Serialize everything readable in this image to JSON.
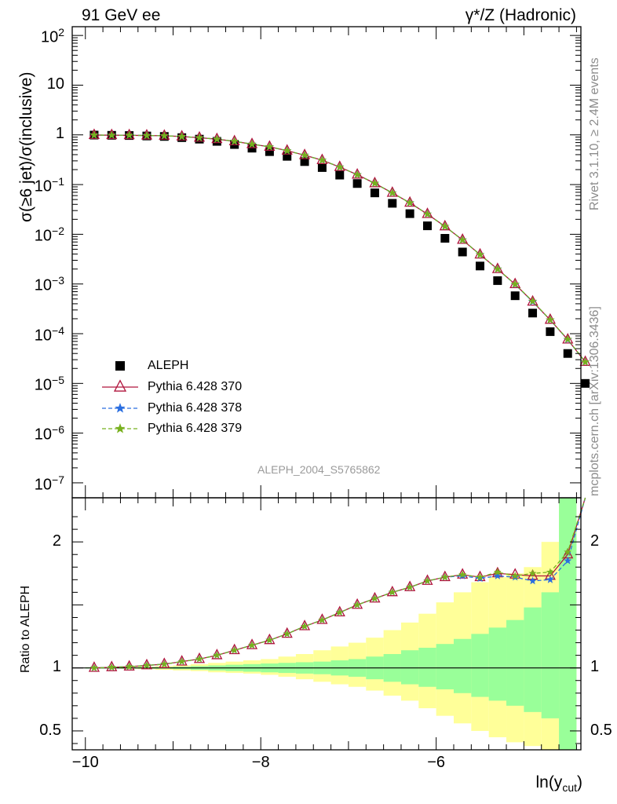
{
  "header": {
    "left_title": "91 GeV ee",
    "right_title": "γ*/Z (Hadronic)"
  },
  "side_notes": {
    "rivet": "Rivet 3.1.10, ≥ 2.4M events",
    "mcplots": "mcplots.cern.ch [arXiv:1306.3436]"
  },
  "plot_id": "ALEPH_2004_S5765862",
  "colors": {
    "aleph": "#000000",
    "py370": "#b0143c",
    "py378": "#2a6ee0",
    "py379": "#78b01e",
    "band_green": "#99ff99",
    "band_yellow": "#ffff99"
  },
  "chart_data": [
    {
      "type": "scatter",
      "panel": "main",
      "ylabel_parts": [
        "σ(≥6 jet)/σ(inclusive)"
      ],
      "xlim": [
        -10.15,
        -4.35
      ],
      "ylim": [
        5e-08,
        150
      ],
      "yscale": "log",
      "ytick_labels": [
        "10^2",
        "10",
        "1",
        "10^-1",
        "10^-2",
        "10^-3",
        "10^-4",
        "10^-5",
        "10^-6",
        "10^-7"
      ],
      "legend_position": "left",
      "x": [
        -9.9,
        -9.7,
        -9.5,
        -9.3,
        -9.1,
        -8.9,
        -8.7,
        -8.5,
        -8.3,
        -8.1,
        -7.9,
        -7.7,
        -7.5,
        -7.3,
        -7.1,
        -6.9,
        -6.7,
        -6.5,
        -6.3,
        -6.1,
        -5.9,
        -5.7,
        -5.5,
        -5.3,
        -5.1,
        -4.9,
        -4.7,
        -4.5
      ],
      "series": [
        {
          "name": "ALEPH",
          "marker": "square",
          "values": [
            0.99,
            0.98,
            0.97,
            0.95,
            0.93,
            0.88,
            0.82,
            0.74,
            0.64,
            0.54,
            0.46,
            0.37,
            0.29,
            0.22,
            0.155,
            0.105,
            0.068,
            0.042,
            0.026,
            0.0148,
            0.0083,
            0.0044,
            0.0023,
            0.00117,
            0.00058,
            0.00026,
            0.00011,
            4e-05
          ]
        },
        {
          "name": "Pythia 6.428 370",
          "marker": "triangle",
          "values": [
            0.99,
            0.985,
            0.98,
            0.97,
            0.96,
            0.925,
            0.875,
            0.82,
            0.74,
            0.65,
            0.575,
            0.48,
            0.39,
            0.31,
            0.225,
            0.158,
            0.106,
            0.068,
            0.043,
            0.0255,
            0.0144,
            0.0077,
            0.0039,
            0.00199,
            0.00099,
            0.00044,
            0.00019,
            7.6e-05
          ]
        },
        {
          "name": "Pythia 6.428 378",
          "marker": "star",
          "values": [
            0.99,
            0.985,
            0.98,
            0.97,
            0.96,
            0.925,
            0.875,
            0.82,
            0.74,
            0.65,
            0.575,
            0.48,
            0.39,
            0.31,
            0.225,
            0.158,
            0.106,
            0.068,
            0.043,
            0.0255,
            0.0144,
            0.0077,
            0.0039,
            0.00199,
            0.00098,
            0.00044,
            0.00019,
            7.6e-05
          ]
        },
        {
          "name": "Pythia 6.428 379",
          "marker": "star",
          "values": [
            0.99,
            0.985,
            0.98,
            0.97,
            0.96,
            0.925,
            0.875,
            0.82,
            0.74,
            0.65,
            0.575,
            0.48,
            0.39,
            0.31,
            0.225,
            0.158,
            0.106,
            0.068,
            0.043,
            0.0255,
            0.0144,
            0.0077,
            0.0039,
            0.00199,
            0.00099,
            0.00045,
            0.00019,
            7.7e-05
          ]
        }
      ],
      "aleph_last_point": {
        "x": -4.3,
        "y": 1e-05
      },
      "pythia_last_point": {
        "x": -4.3,
        "y": 2.7e-05
      }
    },
    {
      "type": "line",
      "panel": "ratio",
      "ylabel": "Ratio to ALEPH",
      "xlabel": "ln(y_cut)",
      "xlabel_main": "ln(y",
      "xlabel_sub": "cut",
      "xlabel_close": ")",
      "xlim": [
        -10.15,
        -4.35
      ],
      "ylim": [
        0.35,
        2.35
      ],
      "ytick_labels": [
        "2",
        "1",
        "0.5"
      ],
      "xtick_labels": [
        "−10",
        "−8",
        "−6"
      ],
      "x": [
        -9.9,
        -9.7,
        -9.5,
        -9.3,
        -9.1,
        -8.9,
        -8.7,
        -8.5,
        -8.3,
        -8.1,
        -7.9,
        -7.7,
        -7.5,
        -7.3,
        -7.1,
        -6.9,
        -6.7,
        -6.5,
        -6.3,
        -6.1,
        -5.9,
        -5.7,
        -5.5,
        -5.3,
        -5.1,
        -4.9,
        -4.7,
        -4.5
      ],
      "series": [
        {
          "name": "Pythia 6.428 370",
          "values": [
            1.0,
            1.005,
            1.01,
            1.02,
            1.03,
            1.05,
            1.07,
            1.1,
            1.14,
            1.18,
            1.22,
            1.27,
            1.33,
            1.38,
            1.44,
            1.5,
            1.55,
            1.6,
            1.64,
            1.69,
            1.72,
            1.74,
            1.72,
            1.75,
            1.74,
            1.73,
            1.73,
            1.9
          ]
        },
        {
          "name": "Pythia 6.428 378",
          "values": [
            1.0,
            1.005,
            1.01,
            1.02,
            1.03,
            1.05,
            1.07,
            1.1,
            1.14,
            1.18,
            1.22,
            1.27,
            1.33,
            1.38,
            1.44,
            1.5,
            1.55,
            1.6,
            1.64,
            1.69,
            1.72,
            1.73,
            1.71,
            1.73,
            1.72,
            1.69,
            1.7,
            1.85
          ]
        },
        {
          "name": "Pythia 6.428 379",
          "values": [
            1.0,
            1.005,
            1.01,
            1.02,
            1.03,
            1.05,
            1.07,
            1.1,
            1.14,
            1.18,
            1.22,
            1.27,
            1.33,
            1.38,
            1.44,
            1.5,
            1.55,
            1.6,
            1.64,
            1.69,
            1.72,
            1.74,
            1.72,
            1.76,
            1.73,
            1.75,
            1.76,
            1.92
          ]
        }
      ],
      "band_edges": [
        -10.0,
        -9.8,
        -9.6,
        -9.4,
        -9.2,
        -9.0,
        -8.8,
        -8.6,
        -8.4,
        -8.2,
        -8.0,
        -7.8,
        -7.6,
        -7.4,
        -7.2,
        -7.0,
        -6.8,
        -6.6,
        -6.4,
        -6.2,
        -6.0,
        -5.8,
        -5.6,
        -5.4,
        -5.2,
        -5.0,
        -4.8,
        -4.6,
        -4.4
      ],
      "green_band": [
        [
          0.995,
          1.005
        ],
        [
          0.995,
          1.005
        ],
        [
          0.995,
          1.005
        ],
        [
          0.994,
          1.006
        ],
        [
          0.993,
          1.007
        ],
        [
          0.99,
          1.01
        ],
        [
          0.985,
          1.015
        ],
        [
          0.98,
          1.02
        ],
        [
          0.975,
          1.025
        ],
        [
          0.97,
          1.03
        ],
        [
          0.965,
          1.035
        ],
        [
          0.96,
          1.04
        ],
        [
          0.955,
          1.045
        ],
        [
          0.95,
          1.05
        ],
        [
          0.94,
          1.06
        ],
        [
          0.93,
          1.07
        ],
        [
          0.91,
          1.09
        ],
        [
          0.89,
          1.11
        ],
        [
          0.87,
          1.14
        ],
        [
          0.85,
          1.16
        ],
        [
          0.83,
          1.19
        ],
        [
          0.8,
          1.23
        ],
        [
          0.77,
          1.27
        ],
        [
          0.74,
          1.32
        ],
        [
          0.7,
          1.38
        ],
        [
          0.65,
          1.48
        ],
        [
          0.6,
          1.6
        ],
        [
          0.35,
          2.35
        ]
      ],
      "yellow_band": [
        [
          0.995,
          1.005
        ],
        [
          0.995,
          1.005
        ],
        [
          0.993,
          1.007
        ],
        [
          0.99,
          1.01
        ],
        [
          0.985,
          1.015
        ],
        [
          0.98,
          1.02
        ],
        [
          0.975,
          1.03
        ],
        [
          0.965,
          1.04
        ],
        [
          0.96,
          1.05
        ],
        [
          0.955,
          1.06
        ],
        [
          0.945,
          1.07
        ],
        [
          0.93,
          1.09
        ],
        [
          0.91,
          1.11
        ],
        [
          0.89,
          1.14
        ],
        [
          0.87,
          1.17
        ],
        [
          0.85,
          1.2
        ],
        [
          0.82,
          1.24
        ],
        [
          0.78,
          1.3
        ],
        [
          0.74,
          1.36
        ],
        [
          0.68,
          1.43
        ],
        [
          0.62,
          1.52
        ],
        [
          0.56,
          1.6
        ],
        [
          0.5,
          1.68
        ],
        [
          0.45,
          1.72
        ],
        [
          0.41,
          1.75
        ],
        [
          0.38,
          1.8
        ],
        [
          0.35,
          2.0
        ],
        [
          0.35,
          2.35
        ]
      ]
    }
  ]
}
